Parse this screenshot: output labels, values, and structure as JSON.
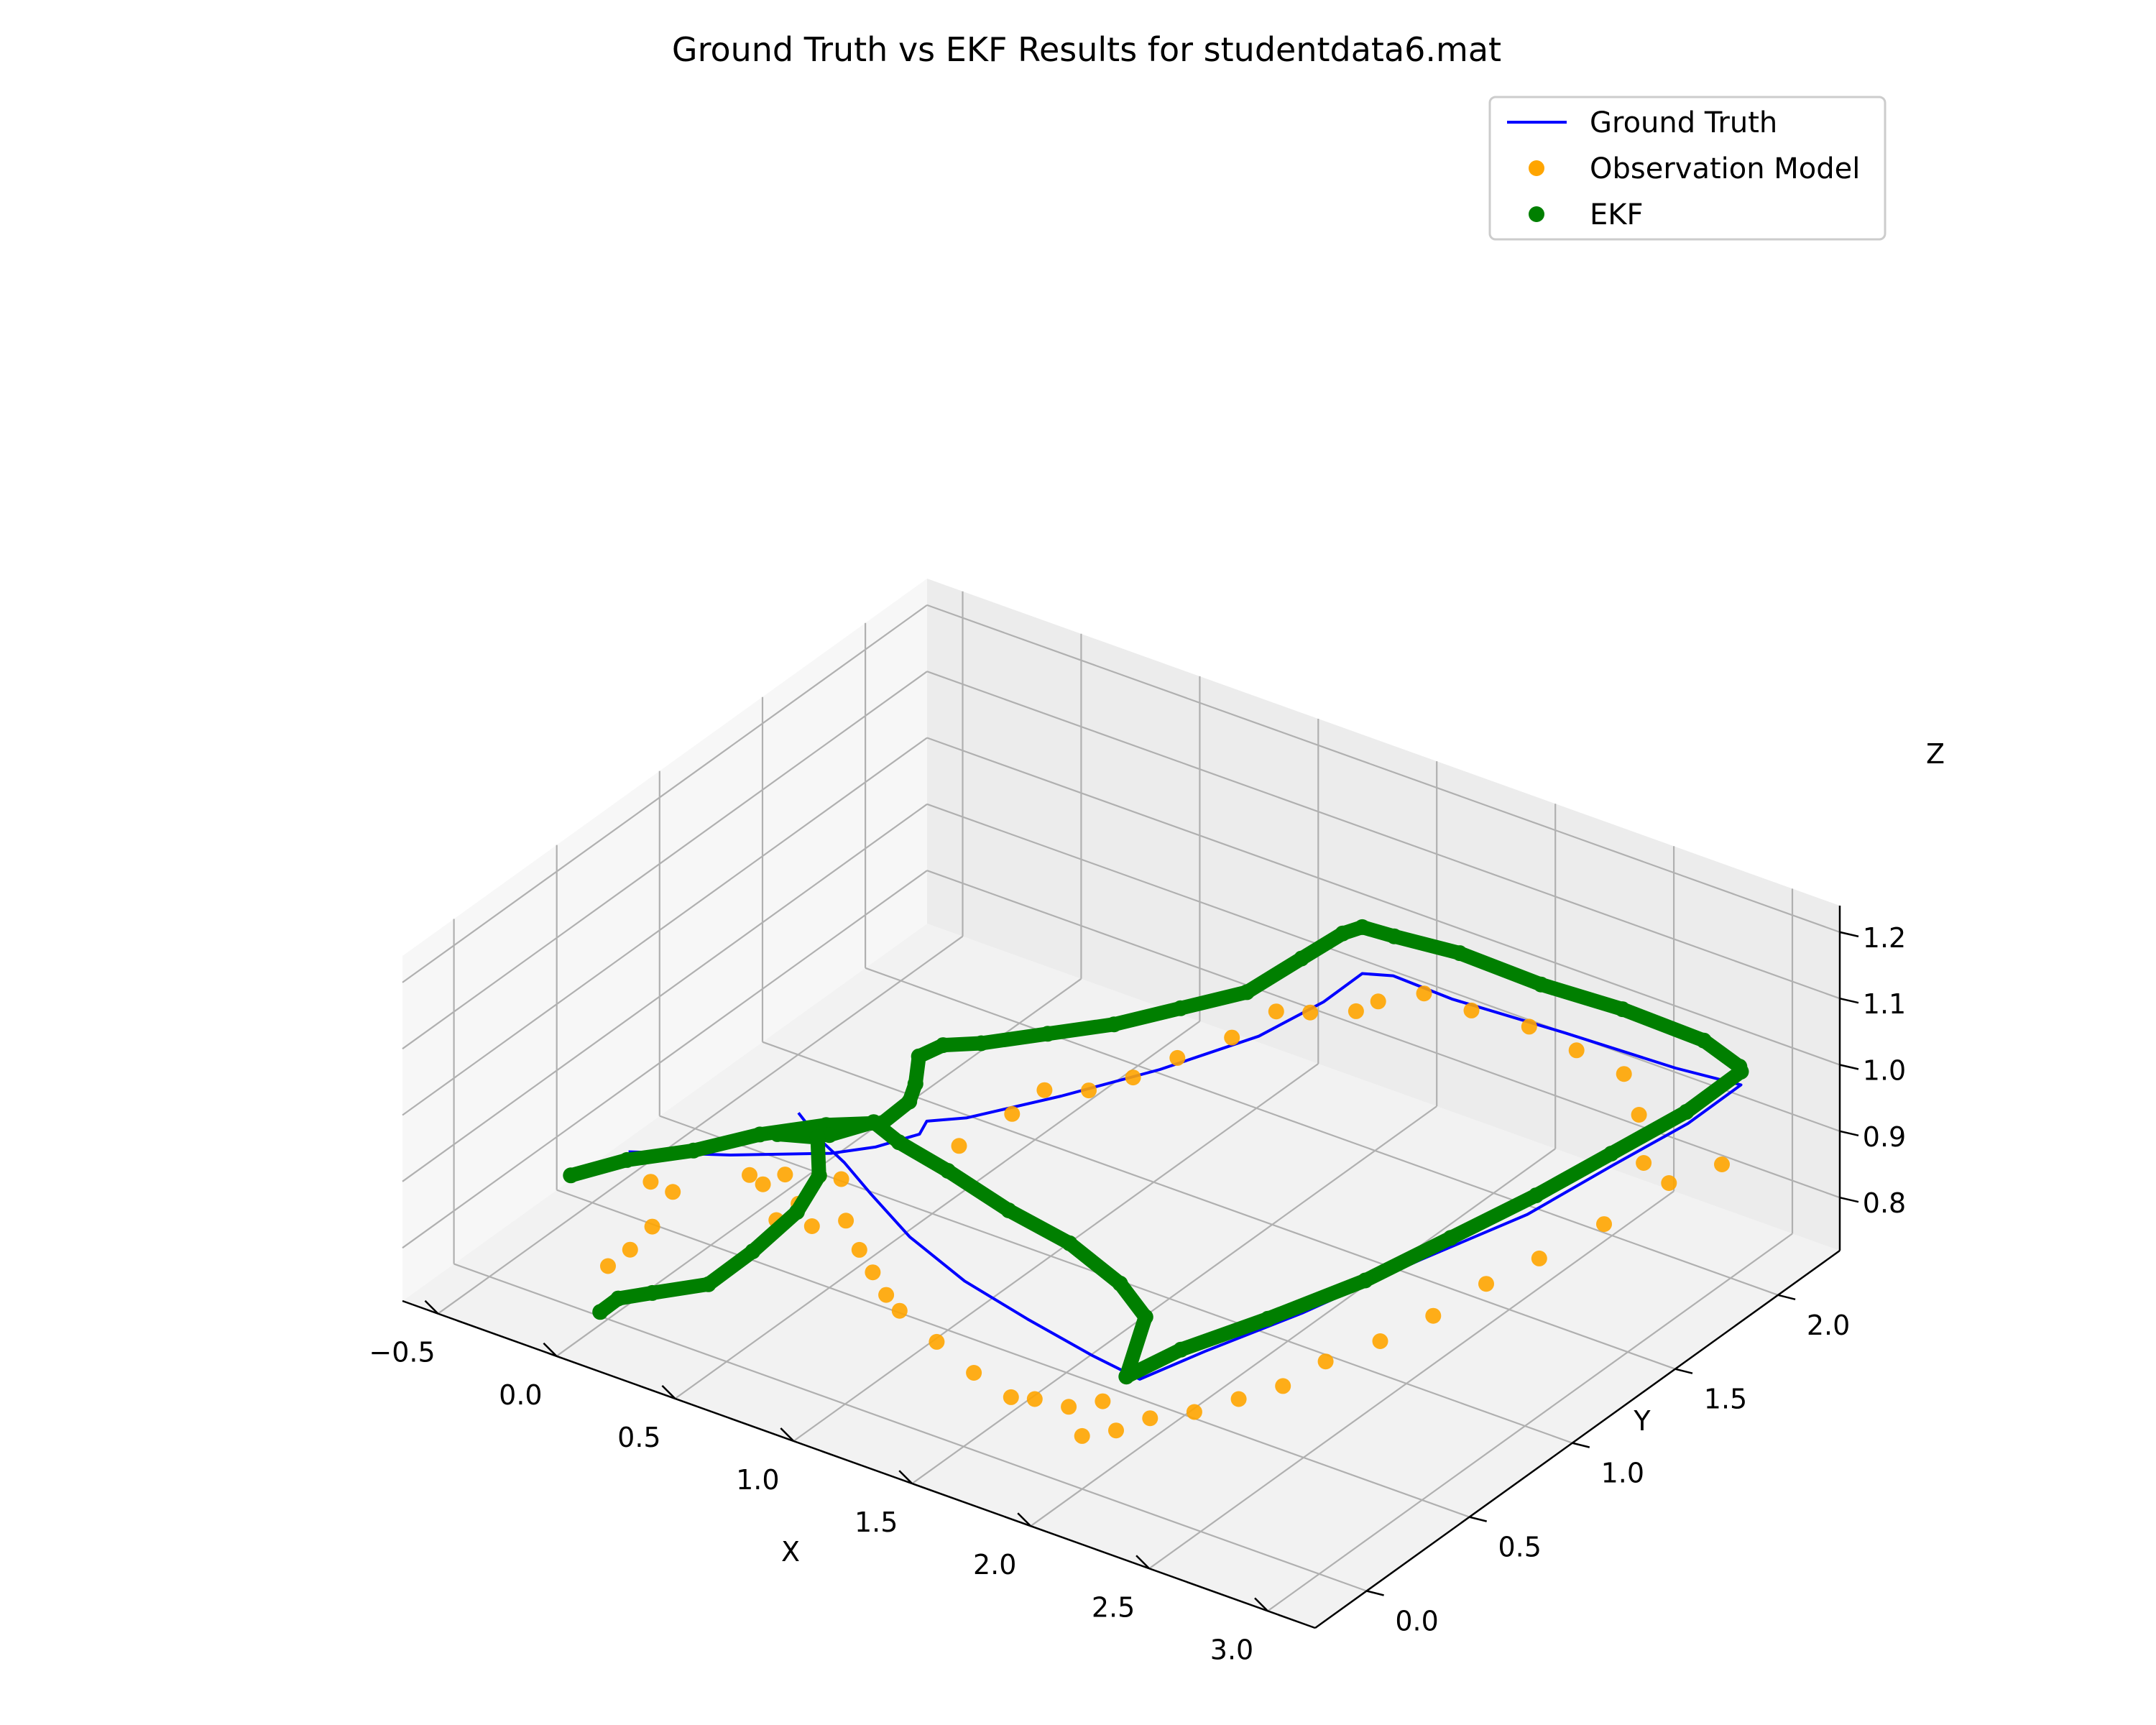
{
  "chart_data": {
    "type": "scatter3d",
    "title": "Ground Truth vs EKF Results for studentdata6.mat",
    "xlabel": "X",
    "ylabel": "Y",
    "zlabel": "Z",
    "xlim": [
      -0.65,
      3.2
    ],
    "ylim": [
      -0.25,
      2.3
    ],
    "zlim": [
      0.72,
      1.24
    ],
    "x_ticks": [
      -0.5,
      0.0,
      0.5,
      1.0,
      1.5,
      2.0,
      2.5,
      3.0
    ],
    "y_ticks": [
      0.0,
      0.5,
      1.0,
      1.5,
      2.0
    ],
    "z_ticks": [
      0.8,
      0.9,
      1.0,
      1.1,
      1.2
    ],
    "x_tick_labels": [
      "−0.5",
      "0.0",
      "0.5",
      "1.0",
      "1.5",
      "2.0",
      "2.5",
      "3.0"
    ],
    "y_tick_labels": [
      "0.0",
      "0.5",
      "1.0",
      "1.5",
      "2.0"
    ],
    "z_tick_labels": [
      "0.8",
      "0.9",
      "1.0",
      "1.1",
      "1.2"
    ],
    "grid": true,
    "legend_position": "top-right",
    "series": [
      {
        "name": "Ground Truth",
        "kind": "line",
        "color": "#0000ff",
        "points": [
          [
            0.0,
            0.1,
            0.95
          ],
          [
            0.3,
            0.25,
            0.95
          ],
          [
            0.55,
            0.45,
            0.94
          ],
          [
            0.65,
            0.55,
            0.94
          ],
          [
            0.75,
            0.65,
            0.95
          ],
          [
            0.72,
            0.72,
            0.95
          ],
          [
            0.82,
            0.8,
            0.95
          ],
          [
            1.0,
            1.05,
            0.95
          ],
          [
            1.2,
            1.3,
            0.96
          ],
          [
            1.4,
            1.55,
            0.98
          ],
          [
            1.5,
            1.75,
            1.0
          ],
          [
            1.55,
            1.88,
            1.02
          ],
          [
            1.62,
            1.95,
            1.01
          ],
          [
            1.85,
            1.97,
            1.0
          ],
          [
            2.3,
            2.0,
            1.0
          ],
          [
            2.75,
            2.02,
            1.0
          ],
          [
            3.0,
            2.05,
            1.0
          ],
          [
            2.95,
            1.85,
            0.98
          ],
          [
            2.85,
            1.6,
            0.96
          ],
          [
            2.75,
            1.3,
            0.94
          ],
          [
            2.6,
            0.95,
            0.93
          ],
          [
            2.45,
            0.55,
            0.92
          ],
          [
            2.3,
            0.25,
            0.91
          ],
          [
            2.2,
            0.05,
            0.9
          ],
          [
            2.0,
            0.05,
            0.91
          ],
          [
            1.7,
            0.08,
            0.92
          ],
          [
            1.4,
            0.12,
            0.93
          ],
          [
            1.1,
            0.2,
            0.94
          ],
          [
            0.85,
            0.3,
            0.95
          ],
          [
            0.65,
            0.4,
            0.95
          ],
          [
            0.45,
            0.5,
            0.94
          ],
          [
            0.3,
            0.58,
            0.94
          ]
        ]
      },
      {
        "name": "Observation Model",
        "kind": "scatter",
        "color": "#ffa500",
        "points": [
          [
            0.05,
            0.15,
            0.9
          ],
          [
            0.1,
            0.2,
            0.88
          ],
          [
            0.1,
            0.1,
            0.85
          ],
          [
            0.05,
            0.05,
            0.82
          ],
          [
            0.0,
            0.0,
            0.8
          ],
          [
            0.4,
            0.4,
            0.9
          ],
          [
            0.5,
            0.35,
            0.88
          ],
          [
            0.6,
            0.3,
            0.87
          ],
          [
            0.7,
            0.35,
            0.88
          ],
          [
            0.5,
            0.45,
            0.9
          ],
          [
            0.55,
            0.5,
            0.89
          ],
          [
            0.8,
            0.3,
            0.86
          ],
          [
            0.9,
            0.25,
            0.85
          ],
          [
            1.0,
            0.2,
            0.84
          ],
          [
            1.1,
            0.15,
            0.84
          ],
          [
            1.3,
            0.1,
            0.83
          ],
          [
            1.5,
            0.05,
            0.82
          ],
          [
            1.7,
            0.0,
            0.82
          ],
          [
            1.8,
            0.0,
            0.83
          ],
          [
            1.9,
            0.05,
            0.82
          ],
          [
            2.0,
            0.0,
            0.8
          ],
          [
            2.1,
            0.05,
            0.81
          ],
          [
            2.0,
            0.1,
            0.83
          ],
          [
            2.2,
            0.1,
            0.83
          ],
          [
            2.3,
            0.2,
            0.83
          ],
          [
            2.4,
            0.3,
            0.84
          ],
          [
            2.5,
            0.4,
            0.85
          ],
          [
            2.55,
            0.55,
            0.86
          ],
          [
            2.65,
            0.7,
            0.87
          ],
          [
            2.7,
            0.9,
            0.87
          ],
          [
            2.75,
            1.1,
            0.88
          ],
          [
            2.8,
            1.3,
            0.88
          ],
          [
            2.9,
            1.5,
            0.9
          ],
          [
            3.0,
            1.7,
            0.93
          ],
          [
            3.05,
            1.9,
            0.92
          ],
          [
            2.85,
            1.75,
            0.93
          ],
          [
            2.7,
            1.9,
            0.95
          ],
          [
            2.55,
            2.0,
            0.97
          ],
          [
            2.35,
            2.0,
            0.98
          ],
          [
            2.15,
            2.0,
            0.99
          ],
          [
            1.95,
            1.95,
            1.0
          ],
          [
            1.75,
            1.95,
            1.0
          ],
          [
            1.6,
            1.9,
            0.98
          ],
          [
            1.55,
            1.85,
            0.97
          ],
          [
            1.4,
            1.8,
            0.96
          ],
          [
            1.3,
            1.75,
            0.96
          ],
          [
            1.2,
            1.65,
            0.93
          ],
          [
            1.1,
            1.5,
            0.92
          ],
          [
            1.0,
            1.4,
            0.9
          ],
          [
            0.9,
            1.3,
            0.89
          ],
          [
            0.8,
            1.2,
            0.9
          ],
          [
            0.75,
            1.1,
            0.88
          ],
          [
            0.7,
            0.9,
            0.87
          ],
          [
            0.45,
            0.3,
            0.86
          ],
          [
            0.35,
            0.35,
            0.89
          ],
          [
            0.25,
            0.4,
            0.88
          ]
        ]
      },
      {
        "name": "EKF",
        "kind": "scatter",
        "color": "#007f00",
        "points": [
          [
            -0.2,
            0.05,
            0.9
          ],
          [
            -0.05,
            0.15,
            0.92
          ],
          [
            0.1,
            0.3,
            0.92
          ],
          [
            0.25,
            0.45,
            0.93
          ],
          [
            0.4,
            0.6,
            0.93
          ],
          [
            0.55,
            0.7,
            0.93
          ],
          [
            0.62,
            0.75,
            0.96
          ],
          [
            0.62,
            0.78,
            0.98
          ],
          [
            0.6,
            0.82,
            1.01
          ],
          [
            0.65,
            0.88,
            1.02
          ],
          [
            0.75,
            0.95,
            1.02
          ],
          [
            0.9,
            1.1,
            1.02
          ],
          [
            1.05,
            1.25,
            1.02
          ],
          [
            1.2,
            1.4,
            1.03
          ],
          [
            1.35,
            1.55,
            1.04
          ],
          [
            1.45,
            1.7,
            1.07
          ],
          [
            1.52,
            1.82,
            1.09
          ],
          [
            1.55,
            1.88,
            1.09
          ],
          [
            1.65,
            1.92,
            1.08
          ],
          [
            1.9,
            1.95,
            1.08
          ],
          [
            2.2,
            2.0,
            1.06
          ],
          [
            2.5,
            2.05,
            1.05
          ],
          [
            2.8,
            2.1,
            1.03
          ],
          [
            2.95,
            2.1,
            1.01
          ],
          [
            3.0,
            2.05,
            1.02
          ],
          [
            2.9,
            1.9,
            0.98
          ],
          [
            2.8,
            1.65,
            0.96
          ],
          [
            2.7,
            1.4,
            0.94
          ],
          [
            2.6,
            1.1,
            0.93
          ],
          [
            2.5,
            0.8,
            0.92
          ],
          [
            2.35,
            0.5,
            0.91
          ],
          [
            2.2,
            0.25,
            0.9
          ],
          [
            2.1,
            0.1,
            0.88
          ],
          [
            2.05,
            0.25,
            0.93
          ],
          [
            1.9,
            0.3,
            0.95
          ],
          [
            1.6,
            0.4,
            0.95
          ],
          [
            1.3,
            0.45,
            0.95
          ],
          [
            1.0,
            0.5,
            0.96
          ],
          [
            0.75,
            0.55,
            0.96
          ],
          [
            0.6,
            0.6,
            0.96
          ],
          [
            0.5,
            0.5,
            0.95
          ],
          [
            0.35,
            0.42,
            0.95
          ],
          [
            0.45,
            0.5,
            0.94
          ],
          [
            0.5,
            0.45,
            0.9
          ],
          [
            0.45,
            0.4,
            0.85
          ],
          [
            0.35,
            0.3,
            0.8
          ],
          [
            0.25,
            0.2,
            0.76
          ],
          [
            0.1,
            0.1,
            0.75
          ],
          [
            0.0,
            0.05,
            0.74
          ],
          [
            -0.05,
            0.02,
            0.72
          ]
        ]
      }
    ]
  }
}
